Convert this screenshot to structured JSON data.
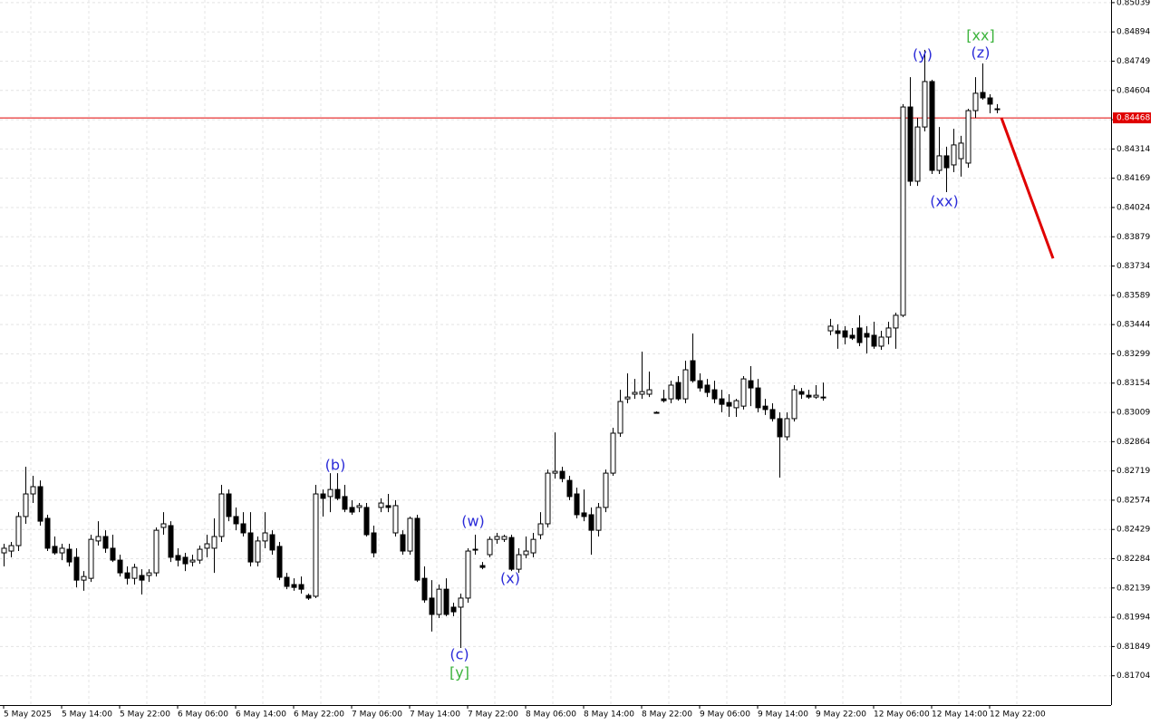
{
  "chart_data": {
    "type": "candlestick",
    "categories": [
      "5 May 2025",
      null,
      null,
      null,
      null,
      null,
      null,
      null,
      "5 May 14:00",
      null,
      null,
      null,
      null,
      null,
      null,
      null,
      "5 May 22:00",
      null,
      null,
      null,
      null,
      null,
      null,
      null,
      "6 May 06:00",
      null,
      null,
      null,
      null,
      null,
      null,
      null,
      "6 May 14:00",
      null,
      null,
      null,
      null,
      null,
      null,
      null,
      "6 May 22:00",
      null,
      null,
      null,
      null,
      null,
      null,
      null,
      "7 May 06:00",
      null,
      null,
      null,
      null,
      null,
      null,
      null,
      "7 May 14:00",
      null,
      null,
      null,
      null,
      null,
      null,
      null,
      "7 May 22:00",
      null,
      null,
      null,
      null,
      null,
      null,
      null,
      "8 May 06:00",
      null,
      null,
      null,
      null,
      null,
      null,
      null,
      "8 May 14:00",
      null,
      null,
      null,
      null,
      null,
      null,
      null,
      "8 May 22:00",
      null,
      null,
      null,
      null,
      null,
      null,
      null,
      "9 May 06:00",
      null,
      null,
      null,
      null,
      null,
      null,
      null,
      "9 May 14:00",
      null,
      null,
      null,
      null,
      null,
      null,
      null,
      "9 May 22:00",
      null,
      null,
      null,
      null,
      null,
      null,
      null,
      "12 May 06:00",
      null,
      null,
      null,
      null,
      null,
      null,
      null,
      "12 May 14:00",
      null,
      null,
      null,
      null,
      null,
      null,
      null,
      "12 May 22:00",
      null
    ],
    "open": [
      0.82313,
      0.82322,
      0.82349,
      0.82493,
      0.82605,
      0.82641,
      0.82484,
      0.82345,
      0.82313,
      0.82331,
      0.82291,
      0.82178,
      0.82187,
      0.82372,
      0.82394,
      0.82336,
      0.82277,
      0.82214,
      0.82187,
      0.82201,
      0.82201,
      0.82214,
      0.82439,
      0.82448,
      0.823,
      0.82291,
      0.82268,
      0.82277,
      0.82336,
      0.82336,
      0.82394,
      0.82605,
      0.82493,
      0.82457,
      0.82412,
      0.82268,
      0.82372,
      0.82403,
      0.82345,
      0.82192,
      0.82156,
      0.82156,
      0.82102,
      0.82098,
      0.82605,
      0.82592,
      0.82627,
      0.82592,
      0.82538,
      0.82538,
      0.82538,
      0.82412,
      0.82538,
      0.82547,
      0.82412,
      0.82403,
      0.82322,
      0.82484,
      0.82187,
      0.82089,
      0.82008,
      0.82133,
      0.82044,
      0.82044,
      0.82089,
      0.82327,
      0.8225,
      0.82304,
      0.8238,
      0.8238,
      0.82389,
      0.82232,
      0.82304,
      0.82313,
      0.82403,
      0.82457,
      0.82708,
      0.82717,
      0.82672,
      0.82605,
      0.82511,
      0.82502,
      0.82425,
      0.82538,
      0.82708,
      0.82906,
      0.83076,
      0.83099,
      0.83099,
      0.83099,
      0.83009,
      0.83076,
      0.83076,
      0.83157,
      0.83076,
      0.83265,
      0.83166,
      0.83144,
      0.83121,
      0.83076,
      0.83058,
      0.83032,
      0.8304,
      0.83166,
      0.8313,
      0.8304,
      0.83023,
      0.82978,
      0.82888,
      0.82978,
      0.83112,
      0.83094,
      0.83085,
      0.83085,
      0.83413,
      0.83413,
      0.83413,
      0.83391,
      0.83427,
      0.834,
      0.83391,
      0.83337,
      0.83382,
      0.83427,
      0.8349,
      0.84522,
      0.84154,
      0.84423,
      0.84648,
      0.84208,
      0.8428,
      0.84235,
      0.84266,
      0.84244,
      0.84504,
      0.84594,
      0.84567,
      0.84513
    ],
    "high": [
      0.82358,
      0.82367,
      0.82515,
      0.8274,
      0.82695,
      0.82672,
      0.82502,
      0.82394,
      0.82358,
      0.82358,
      0.82336,
      0.82223,
      0.82403,
      0.8247,
      0.82425,
      0.82403,
      0.82304,
      0.82246,
      0.82259,
      0.82232,
      0.82232,
      0.82439,
      0.82515,
      0.8247,
      0.82336,
      0.82313,
      0.82304,
      0.82349,
      0.82403,
      0.82484,
      0.8265,
      0.82627,
      0.82538,
      0.82515,
      0.82515,
      0.82394,
      0.82515,
      0.82425,
      0.82367,
      0.82214,
      0.82187,
      0.82196,
      0.82111,
      0.8265,
      0.82627,
      0.82708,
      0.82708,
      0.8265,
      0.82574,
      0.8256,
      0.8256,
      0.82448,
      0.82583,
      0.82605,
      0.82574,
      0.82425,
      0.82493,
      0.82502,
      0.82246,
      0.82178,
      0.82156,
      0.82187,
      0.82066,
      0.82111,
      0.82336,
      0.82403,
      0.82268,
      0.82394,
      0.82412,
      0.82403,
      0.82403,
      0.82336,
      0.82394,
      0.82412,
      0.82515,
      0.82726,
      0.8291,
      0.8274,
      0.82695,
      0.82636,
      0.82627,
      0.82538,
      0.8256,
      0.82726,
      0.82933,
      0.83121,
      0.83202,
      0.83175,
      0.8331,
      0.83211,
      0.83014,
      0.83121,
      0.83166,
      0.83189,
      0.83265,
      0.834,
      0.83202,
      0.83175,
      0.83166,
      0.83121,
      0.83099,
      0.83076,
      0.83189,
      0.83238,
      0.83175,
      0.83076,
      0.83054,
      0.83009,
      0.83009,
      0.83144,
      0.8313,
      0.83121,
      0.83144,
      0.83157,
      0.83472,
      0.83445,
      0.83436,
      0.83427,
      0.8349,
      0.83436,
      0.83458,
      0.83413,
      0.83458,
      0.83503,
      0.84536,
      0.8467,
      0.84468,
      0.84805,
      0.84657,
      0.84423,
      0.84325,
      0.84414,
      0.84379,
      0.84513,
      0.8467,
      0.84738,
      0.84585,
      0.84536
    ],
    "low": [
      0.82246,
      0.82291,
      0.82322,
      0.82457,
      0.8256,
      0.82448,
      0.82322,
      0.82304,
      0.82277,
      0.82246,
      0.82142,
      0.82125,
      0.82169,
      0.82349,
      0.82313,
      0.82268,
      0.82196,
      0.82156,
      0.82156,
      0.82107,
      0.82169,
      0.82196,
      0.82403,
      0.82268,
      0.82246,
      0.82223,
      0.82246,
      0.82259,
      0.82291,
      0.82214,
      0.82367,
      0.8247,
      0.82425,
      0.82394,
      0.82246,
      0.82246,
      0.82336,
      0.82304,
      0.82178,
      0.82133,
      0.82125,
      0.82111,
      0.8208,
      0.82089,
      0.82493,
      0.82515,
      0.82574,
      0.82515,
      0.82502,
      0.82515,
      0.82394,
      0.82291,
      0.82515,
      0.82515,
      0.82394,
      0.82304,
      0.82304,
      0.82169,
      0.82066,
      0.81923,
      0.8199,
      0.81999,
      0.81999,
      0.81842,
      0.82066,
      0.82304,
      0.82232,
      0.82291,
      0.82358,
      0.82367,
      0.82223,
      0.82214,
      0.82286,
      0.82291,
      0.8238,
      0.82439,
      0.82681,
      0.82663,
      0.82574,
      0.82484,
      0.8247,
      0.82304,
      0.82394,
      0.82515,
      0.82695,
      0.82888,
      0.83054,
      0.83076,
      0.83076,
      0.83085,
      0.83005,
      0.83058,
      0.83054,
      0.83067,
      0.83054,
      0.83157,
      0.83112,
      0.83085,
      0.83054,
      0.83009,
      0.82987,
      0.82987,
      0.83023,
      0.8304,
      0.83009,
      0.82996,
      0.82964,
      0.82686,
      0.8287,
      0.82964,
      0.83076,
      0.83076,
      0.83076,
      0.83067,
      0.83391,
      0.83324,
      0.83346,
      0.83368,
      0.83337,
      0.83301,
      0.83324,
      0.83319,
      0.83346,
      0.83324,
      0.83481,
      0.84131,
      0.84131,
      0.84401,
      0.8419,
      0.8419,
      0.841,
      0.84199,
      0.84177,
      0.84221,
      0.84468,
      0.84558,
      0.84491,
      0.84491
    ],
    "close": [
      0.82336,
      0.82349,
      0.82493,
      0.82605,
      0.82641,
      0.8247,
      0.82336,
      0.82313,
      0.82336,
      0.82268,
      0.82178,
      0.82196,
      0.8238,
      0.82394,
      0.82336,
      0.82277,
      0.82214,
      0.82187,
      0.82241,
      0.82178,
      0.82214,
      0.82425,
      0.82457,
      0.82291,
      0.82277,
      0.82259,
      0.82277,
      0.82331,
      0.82358,
      0.82394,
      0.82605,
      0.82493,
      0.82457,
      0.82412,
      0.82268,
      0.82372,
      0.82412,
      0.82327,
      0.82192,
      0.82147,
      0.82142,
      0.82133,
      0.82089,
      0.82605,
      0.82583,
      0.82627,
      0.82583,
      0.82529,
      0.82515,
      0.82547,
      0.82403,
      0.82313,
      0.8256,
      0.82538,
      0.82547,
      0.82322,
      0.82484,
      0.82178,
      0.8208,
      0.82008,
      0.82133,
      0.82008,
      0.82021,
      0.82089,
      0.82322,
      0.82331,
      0.82241,
      0.8238,
      0.82394,
      0.82394,
      0.82232,
      0.82304,
      0.82322,
      0.8238,
      0.82457,
      0.82708,
      0.82717,
      0.82681,
      0.82592,
      0.82502,
      0.82493,
      0.82425,
      0.82538,
      0.82708,
      0.82906,
      0.83063,
      0.83085,
      0.83108,
      0.83112,
      0.83121,
      0.83009,
      0.83067,
      0.83144,
      0.83076,
      0.8322,
      0.83166,
      0.8313,
      0.83108,
      0.83076,
      0.83049,
      0.8304,
      0.83067,
      0.83175,
      0.8313,
      0.83032,
      0.83023,
      0.82978,
      0.82888,
      0.82978,
      0.83121,
      0.83099,
      0.83085,
      0.83094,
      0.83085,
      0.83436,
      0.834,
      0.83382,
      0.83377,
      0.83355,
      0.83382,
      0.83337,
      0.83382,
      0.83427,
      0.8349,
      0.84522,
      0.84154,
      0.84423,
      0.84648,
      0.84208,
      0.8428,
      0.84221,
      0.84334,
      0.84343,
      0.84504,
      0.8459,
      0.84567,
      0.84536,
      0.84513
    ],
    "up_color": "#ffffff",
    "down_color": "#000000",
    "ylim": [
      0.81559,
      0.85052
    ],
    "yticks": [
      0.85039,
      0.84894,
      0.84749,
      0.84604,
      0.84459,
      0.84314,
      0.84169,
      0.84024,
      0.83879,
      0.83734,
      0.83589,
      0.83444,
      0.83299,
      0.83154,
      0.83009,
      0.82864,
      0.82719,
      0.82574,
      0.82429,
      0.82284,
      0.82139,
      0.81994,
      0.81849,
      0.81704
    ],
    "grid": true,
    "current_price": {
      "value": 0.84468,
      "color": "#e00000"
    },
    "forecast": {
      "from": 0.84468,
      "to": 0.83772,
      "color": "#e00000"
    },
    "annotations": [
      {
        "text": "(b)",
        "color": "#2a2ad8"
      },
      {
        "text": "(w)",
        "color": "#2a2ad8"
      },
      {
        "text": "(x)",
        "color": "#2a2ad8"
      },
      {
        "text": "(c)",
        "color": "#2a2ad8"
      },
      {
        "text": "[y]",
        "color": "#3cb33c"
      },
      {
        "text": "(y)",
        "color": "#2a2ad8"
      },
      {
        "text": "(xx)",
        "color": "#2a2ad8"
      },
      {
        "text": "[xx]",
        "color": "#3cb33c"
      },
      {
        "text": "(z)",
        "color": "#2a2ad8"
      }
    ]
  }
}
